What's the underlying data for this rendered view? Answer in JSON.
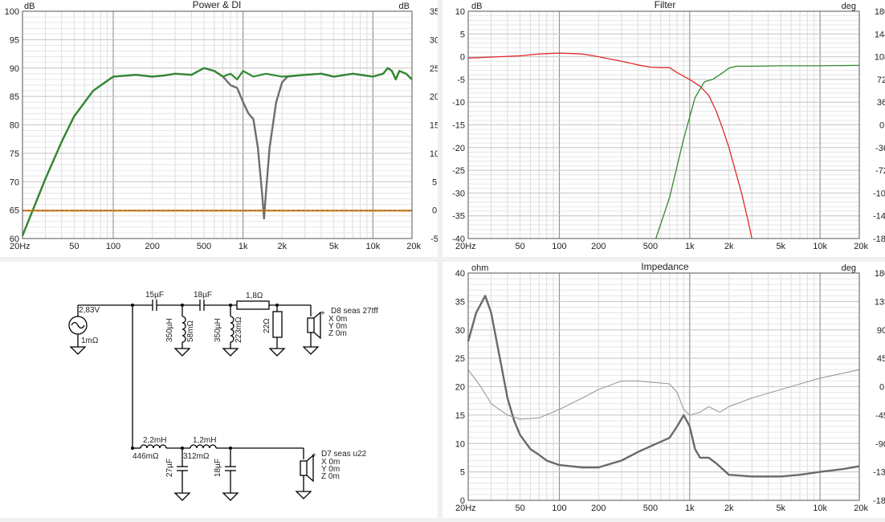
{
  "chart_data": [
    {
      "type": "line",
      "title": "Power & DI",
      "ylabel_left": "dB",
      "ylabel_right": "dB",
      "xscale": "log",
      "xlim": [
        20,
        20000
      ],
      "ylim_left": [
        60,
        100
      ],
      "ylim_right": [
        -5,
        35
      ],
      "x_ticks": [
        20,
        50,
        100,
        200,
        500,
        1000,
        2000,
        5000,
        10000,
        20000
      ],
      "x_tick_labels": [
        "20Hz",
        "50",
        "100",
        "200",
        "500",
        "1k",
        "2k",
        "5k",
        "10k",
        "20k"
      ],
      "y_ticks_left": [
        "100",
        "95",
        "90",
        "85",
        "80",
        "75",
        "70",
        "65",
        "60"
      ],
      "y_ticks_right": [
        "35",
        "30",
        "25",
        "20",
        "15",
        "10",
        "5",
        "0",
        "-5"
      ],
      "grid": true,
      "series": [
        {
          "axis": "left",
          "color": "#6e6e6e",
          "width": 2.4,
          "points": [
            [
              20,
              60.5
            ],
            [
              25,
              66
            ],
            [
              30,
              70.5
            ],
            [
              40,
              77
            ],
            [
              50,
              81.5
            ],
            [
              70,
              86
            ],
            [
              100,
              88.5
            ],
            [
              150,
              88.8
            ],
            [
              200,
              88.5
            ],
            [
              250,
              88.7
            ],
            [
              300,
              89
            ],
            [
              400,
              88.8
            ],
            [
              500,
              90
            ],
            [
              600,
              89.5
            ],
            [
              700,
              88.5
            ],
            [
              800,
              87
            ],
            [
              900,
              86.5
            ],
            [
              1000,
              84
            ],
            [
              1100,
              82
            ],
            [
              1200,
              81
            ],
            [
              1300,
              76
            ],
            [
              1400,
              68
            ],
            [
              1450,
              63.5
            ],
            [
              1500,
              68
            ],
            [
              1600,
              76
            ],
            [
              1800,
              84
            ],
            [
              2000,
              87.5
            ],
            [
              2200,
              88.5
            ],
            [
              3000,
              88.8
            ],
            [
              4000,
              89
            ],
            [
              5000,
              88.5
            ],
            [
              7000,
              89
            ],
            [
              10000,
              88.5
            ],
            [
              12000,
              89
            ],
            [
              13000,
              90
            ],
            [
              14000,
              89.5
            ],
            [
              15000,
              88
            ],
            [
              16000,
              89.5
            ],
            [
              18000,
              89
            ],
            [
              20000,
              88
            ]
          ]
        },
        {
          "axis": "left",
          "color": "#2f8a2f",
          "width": 2.2,
          "points": [
            [
              20,
              60.5
            ],
            [
              25,
              66
            ],
            [
              30,
              70.5
            ],
            [
              40,
              77
            ],
            [
              50,
              81.5
            ],
            [
              70,
              86
            ],
            [
              100,
              88.5
            ],
            [
              150,
              88.8
            ],
            [
              200,
              88.5
            ],
            [
              250,
              88.7
            ],
            [
              300,
              89
            ],
            [
              400,
              88.8
            ],
            [
              500,
              90
            ],
            [
              600,
              89.5
            ],
            [
              700,
              88.5
            ],
            [
              800,
              89
            ],
            [
              900,
              88
            ],
            [
              1000,
              89.5
            ],
            [
              1200,
              88.5
            ],
            [
              1500,
              89
            ],
            [
              2000,
              88.5
            ],
            [
              3000,
              88.8
            ],
            [
              4000,
              89
            ],
            [
              5000,
              88.5
            ],
            [
              7000,
              89
            ],
            [
              10000,
              88.5
            ],
            [
              12000,
              89
            ],
            [
              13000,
              90
            ],
            [
              14000,
              89.5
            ],
            [
              15000,
              88
            ],
            [
              16000,
              89.5
            ],
            [
              18000,
              89
            ],
            [
              20000,
              88
            ]
          ]
        },
        {
          "axis": "left",
          "color": "#e07b00",
          "width": 2.2,
          "points": [
            [
              20,
              64.9
            ],
            [
              20000,
              64.9
            ]
          ]
        },
        {
          "axis": "left",
          "color": "#666666",
          "width": 1,
          "dash": "3,3",
          "points": [
            [
              20,
              64.9
            ],
            [
              20000,
              64.9
            ]
          ]
        }
      ]
    },
    {
      "type": "line",
      "title": "Filter",
      "ylabel_left": "dB",
      "ylabel_right": "deg",
      "xscale": "log",
      "xlim": [
        20,
        20000
      ],
      "ylim_left": [
        -40,
        10
      ],
      "ylim_right": [
        -180,
        180
      ],
      "x_ticks": [
        20,
        50,
        100,
        200,
        500,
        1000,
        2000,
        5000,
        10000,
        20000
      ],
      "x_tick_labels": [
        "20Hz",
        "50",
        "100",
        "200",
        "500",
        "1k",
        "2k",
        "5k",
        "10k",
        "20k"
      ],
      "y_ticks_left": [
        "10",
        "5",
        "0",
        "-5",
        "-10",
        "-15",
        "-20",
        "-25",
        "-30",
        "-35",
        "-40"
      ],
      "y_ticks_right": [
        "180",
        "144",
        "108",
        "72",
        "36",
        "0",
        "-36",
        "-72",
        "-108",
        "-144",
        "-180"
      ],
      "grid": true,
      "series": [
        {
          "axis": "left",
          "color": "#e0282a",
          "width": 1.3,
          "points": [
            [
              20,
              -0.3
            ],
            [
              50,
              0.2
            ],
            [
              70,
              0.6
            ],
            [
              100,
              0.8
            ],
            [
              150,
              0.6
            ],
            [
              200,
              0
            ],
            [
              300,
              -1
            ],
            [
              400,
              -1.8
            ],
            [
              500,
              -2.3
            ],
            [
              600,
              -2.4
            ],
            [
              700,
              -2.4
            ],
            [
              800,
              -3.5
            ],
            [
              1000,
              -5
            ],
            [
              1200,
              -6.5
            ],
            [
              1400,
              -8.5
            ],
            [
              1600,
              -12
            ],
            [
              1800,
              -16
            ],
            [
              2000,
              -20
            ],
            [
              2500,
              -30
            ],
            [
              2800,
              -36
            ],
            [
              3000,
              -40
            ]
          ]
        },
        {
          "axis": "left",
          "color": "#2f8a2f",
          "width": 1.3,
          "points": [
            [
              550,
              -40
            ],
            [
              700,
              -31
            ],
            [
              900,
              -18
            ],
            [
              1100,
              -9
            ],
            [
              1300,
              -5.5
            ],
            [
              1500,
              -5
            ],
            [
              1800,
              -3.5
            ],
            [
              2000,
              -2.5
            ],
            [
              2300,
              -2.1
            ],
            [
              3000,
              -2.1
            ],
            [
              5000,
              -2
            ],
            [
              10000,
              -2
            ],
            [
              20000,
              -1.9
            ]
          ]
        }
      ]
    },
    {
      "type": "line",
      "title": "Impedance",
      "ylabel_left": "ohm",
      "ylabel_right": "deg",
      "xscale": "log",
      "xlim": [
        20,
        20000
      ],
      "ylim_left": [
        0,
        40
      ],
      "ylim_right": [
        -180,
        180
      ],
      "x_ticks": [
        20,
        50,
        100,
        200,
        500,
        1000,
        2000,
        5000,
        10000,
        20000
      ],
      "x_tick_labels": [
        "20Hz",
        "50",
        "100",
        "200",
        "500",
        "1k",
        "2k",
        "5k",
        "10k",
        "20k"
      ],
      "y_ticks_left": [
        "40",
        "35",
        "30",
        "25",
        "20",
        "15",
        "10",
        "5",
        "0"
      ],
      "y_ticks_right": [
        "180",
        "135",
        "90",
        "45",
        "0",
        "-45",
        "-90",
        "-135",
        "-180"
      ],
      "grid": true,
      "series": [
        {
          "axis": "left",
          "color": "#6a6a6a",
          "width": 2.4,
          "points": [
            [
              20,
              28
            ],
            [
              23,
              33
            ],
            [
              27,
              36
            ],
            [
              30,
              33
            ],
            [
              35,
              25
            ],
            [
              40,
              18
            ],
            [
              45,
              14
            ],
            [
              50,
              11.5
            ],
            [
              60,
              9
            ],
            [
              70,
              8
            ],
            [
              80,
              7
            ],
            [
              100,
              6.2
            ],
            [
              150,
              5.8
            ],
            [
              200,
              5.8
            ],
            [
              300,
              7
            ],
            [
              400,
              8.5
            ],
            [
              500,
              9.5
            ],
            [
              700,
              11
            ],
            [
              800,
              13
            ],
            [
              900,
              15
            ],
            [
              1000,
              13
            ],
            [
              1100,
              9
            ],
            [
              1200,
              7.5
            ],
            [
              1400,
              7.5
            ],
            [
              1600,
              6.5
            ],
            [
              2000,
              4.5
            ],
            [
              3000,
              4.2
            ],
            [
              5000,
              4.2
            ],
            [
              7000,
              4.5
            ],
            [
              10000,
              5
            ],
            [
              15000,
              5.5
            ],
            [
              20000,
              6
            ]
          ]
        },
        {
          "axis": "left",
          "color": "#9a9a9a",
          "width": 1.1,
          "points": [
            [
              20,
              23
            ],
            [
              25,
              20
            ],
            [
              30,
              17
            ],
            [
              40,
              15
            ],
            [
              50,
              14.3
            ],
            [
              70,
              14.5
            ],
            [
              100,
              16
            ],
            [
              150,
              18
            ],
            [
              200,
              19.5
            ],
            [
              300,
              21
            ],
            [
              400,
              21
            ],
            [
              500,
              20.8
            ],
            [
              700,
              20.5
            ],
            [
              800,
              19
            ],
            [
              900,
              16
            ],
            [
              1000,
              15
            ],
            [
              1200,
              15.5
            ],
            [
              1400,
              16.5
            ],
            [
              1700,
              15.5
            ],
            [
              2000,
              16.5
            ],
            [
              3000,
              18
            ],
            [
              5000,
              19.5
            ],
            [
              10000,
              21.5
            ],
            [
              20000,
              23
            ]
          ]
        }
      ]
    }
  ],
  "schematic": {
    "source_voltage": "2,83V",
    "source_resistance": "1mΩ",
    "c1": "15µF",
    "c2": "18µF",
    "r_series": "1,8Ω",
    "l1_value": "350µH",
    "l1_res": "58mΩ",
    "l2_value": "350µH",
    "l2_res": "223mΩ",
    "r_shunt": "22Ω",
    "tweeter_name": "D8 seas 27tff",
    "tweeter_x": "X 0m",
    "tweeter_y": "Y 0m",
    "tweeter_z": "Z 0m",
    "l3_value": "2,2mH",
    "l3_res": "446mΩ",
    "l4_value": "1,2mH",
    "l4_res": "312mΩ",
    "c3": "27µF",
    "c4": "18µF",
    "woofer_name": "D7 seas u22",
    "woofer_x": "X 0m",
    "woofer_y": "Y 0m",
    "woofer_z": "Z 0m"
  }
}
